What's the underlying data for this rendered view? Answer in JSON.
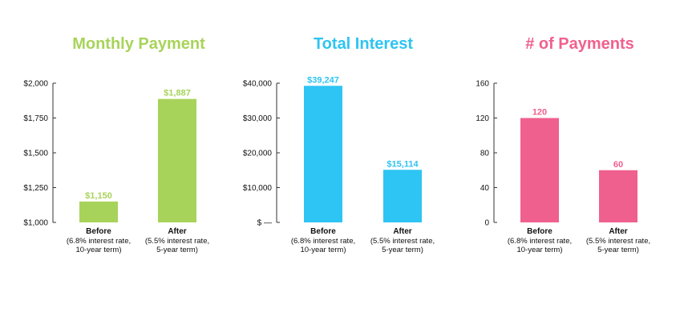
{
  "chart_data": [
    {
      "type": "bar",
      "title": "Monthly Payment",
      "color": "#a8d35a",
      "categories": [
        {
          "name": "Before",
          "sub": [
            "(6.8% interest rate,",
            "10-year term)"
          ]
        },
        {
          "name": "After",
          "sub": [
            "(5.5% interest rate,",
            "5-year term)"
          ]
        }
      ],
      "values": [
        1150,
        1887
      ],
      "value_labels": [
        "$1,150",
        "$1,887"
      ],
      "ylim": [
        1000,
        2000
      ],
      "yticks": [
        1000,
        1250,
        1500,
        1750,
        2000
      ],
      "ytick_labels": [
        "$1,000",
        "$1,250",
        "$1,500",
        "$1,750",
        "$2,000"
      ],
      "grid": false
    },
    {
      "type": "bar",
      "title": "Total Interest",
      "color": "#2ec4f3",
      "categories": [
        {
          "name": "Before",
          "sub": [
            "(6.8% interest rate,",
            "10-year term)"
          ]
        },
        {
          "name": "After",
          "sub": [
            "(5.5% interest rate,",
            "5-year term)"
          ]
        }
      ],
      "values": [
        39247,
        15114
      ],
      "value_labels": [
        "$39,247",
        "$15,114"
      ],
      "ylim": [
        0,
        40000
      ],
      "yticks": [
        0,
        10000,
        20000,
        30000,
        40000
      ],
      "ytick_labels": [
        "$ —",
        "$10,000",
        "$20,000",
        "$30,000",
        "$40,000"
      ],
      "grid": false
    },
    {
      "type": "bar",
      "title": "# of Payments",
      "color": "#f0608f",
      "categories": [
        {
          "name": "Before",
          "sub": [
            "(6.8% interest rate,",
            "10-year term)"
          ]
        },
        {
          "name": "After",
          "sub": [
            "(5.5% interest rate,",
            "5-year term)"
          ]
        }
      ],
      "values": [
        120,
        60
      ],
      "value_labels": [
        "120",
        "60"
      ],
      "ylim": [
        0,
        160
      ],
      "yticks": [
        0,
        40,
        80,
        120,
        160
      ],
      "ytick_labels": [
        "0",
        "40",
        "80",
        "120",
        "160"
      ],
      "grid": false
    }
  ]
}
